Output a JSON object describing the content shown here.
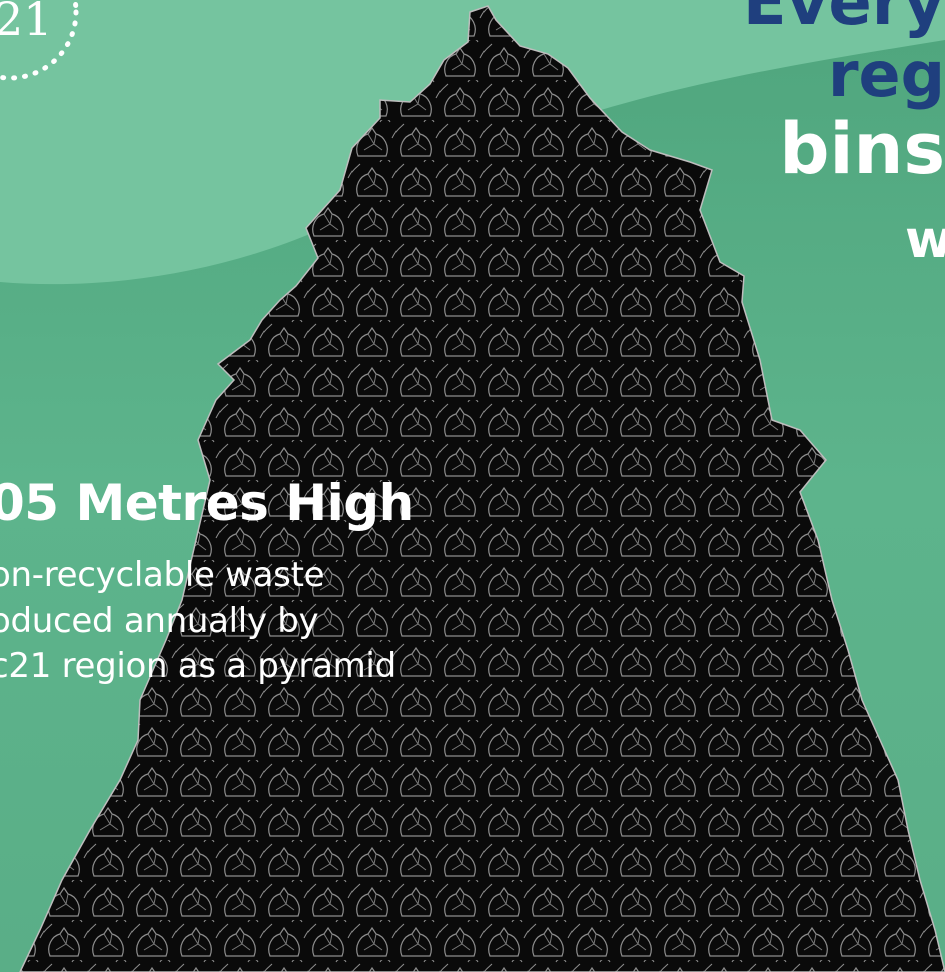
{
  "headline": {
    "line1": "Every",
    "line2": "reg",
    "line3": "bins",
    "line4": "w"
  },
  "logo": {
    "text": "21"
  },
  "stat": {
    "title": "05 Metres High",
    "description": [
      "on-recyclable waste",
      "oduced annually by",
      "c21 region as a pyramid"
    ]
  },
  "colors": {
    "background": "#5fb48c",
    "wave": "#75c49f",
    "headline_blue": "#1f3f7e",
    "text_white": "#ffffff",
    "pyramid": "#0a0a0a",
    "bag_outline": "#9a9a9a"
  },
  "icons": [
    "dotted-circle-logo",
    "garbage-bag-pyramid"
  ]
}
